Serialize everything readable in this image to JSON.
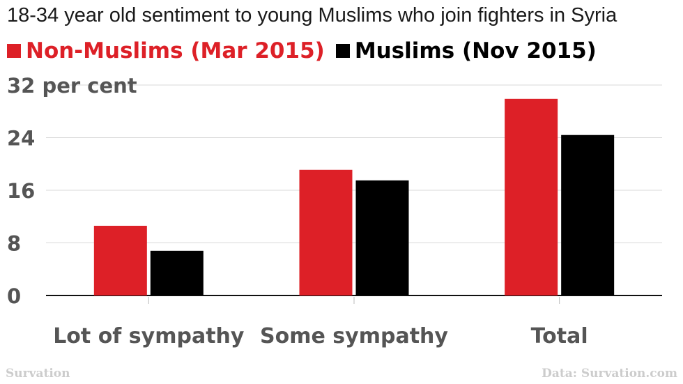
{
  "chart_data": {
    "type": "bar",
    "title": "18-34 year old sentiment to young Muslims who join fighters in Syria",
    "categories": [
      "Lot of sympathy",
      "Some sympathy",
      "Total"
    ],
    "series": [
      {
        "name": "Non-Muslims (Mar 2015)",
        "color": "#dd2027",
        "values": [
          10.6,
          19.1,
          29.9
        ]
      },
      {
        "name": "Muslims (Nov 2015)",
        "color": "#000000",
        "values": [
          6.8,
          17.5,
          24.4
        ]
      }
    ],
    "yticks": [
      "0",
      "8",
      "16",
      "24",
      "32 per cent"
    ],
    "ytick_values": [
      0,
      8,
      16,
      24,
      32
    ],
    "ylim": [
      0,
      32
    ],
    "grid": true,
    "legend": "top-left"
  },
  "footer": {
    "source_left": "Survation",
    "source_right": "Data: Survation.com"
  }
}
